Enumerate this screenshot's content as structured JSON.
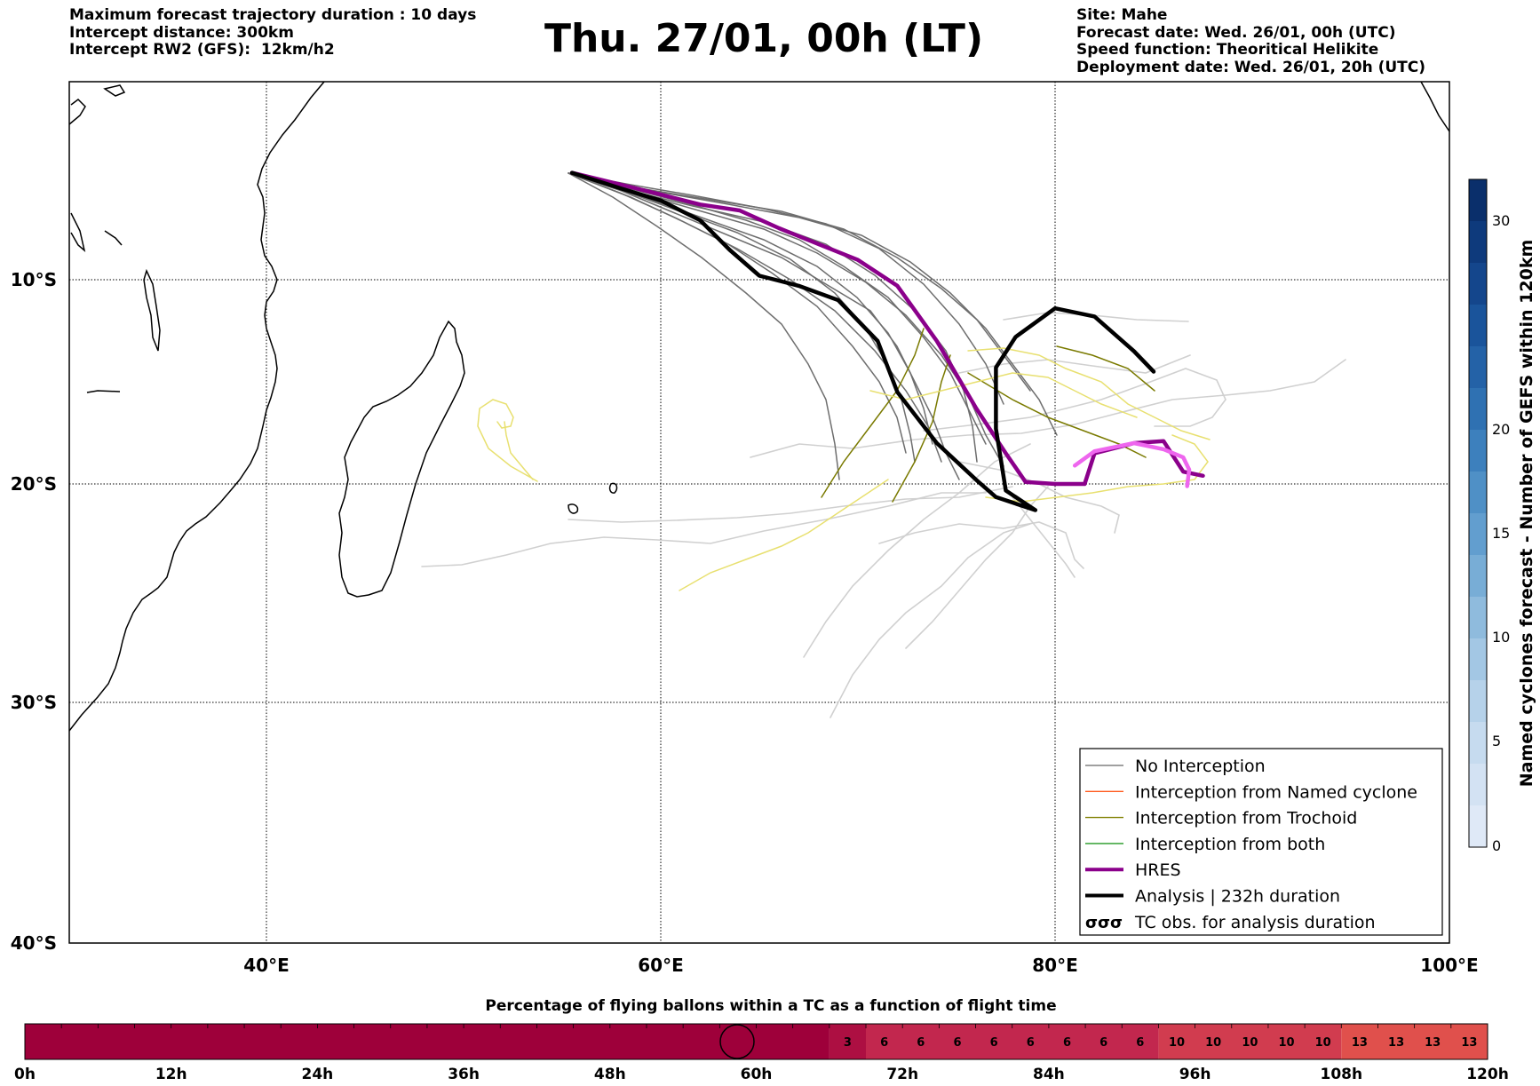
{
  "header": {
    "left": [
      "Maximum forecast trajectory duration : 10 days",
      "Intercept distance: 300km",
      "Intercept RW2 (GFS):  12km/h2"
    ],
    "title": "Thu. 27/01, 00h (LT)",
    "right": [
      "Site: Mahe",
      "Forecast date: Wed. 26/01, 00h (UTC)",
      "Speed function: Theoritical Helikite",
      "Deployment date: Wed. 26/01, 20h (UTC)"
    ]
  },
  "map": {
    "x_ticks": [
      "40°E",
      "60°E",
      "80°E",
      "100°E"
    ],
    "y_ticks": [
      "10°S",
      "20°S",
      "30°S",
      "40°S"
    ]
  },
  "legend": {
    "items": [
      {
        "label": "No Interception",
        "color": "#808080",
        "style": "thin"
      },
      {
        "label": "Interception from Named cyclone",
        "color": "#ff5a1e",
        "style": "thin"
      },
      {
        "label": "Interception from Trochoid",
        "color": "#808000",
        "style": "thin"
      },
      {
        "label": "Interception from both",
        "color": "#229922",
        "style": "thin"
      },
      {
        "label": "HRES",
        "color": "#8b008b",
        "style": "thick"
      },
      {
        "label": "Analysis | 232h duration",
        "color": "#000000",
        "style": "thick"
      },
      {
        "label": "TC obs. for analysis duration",
        "color": "#000000",
        "style": "symbol"
      }
    ]
  },
  "colorbar": {
    "label": "Named cyclones forecast - Number of GEFS within 120km",
    "ticks": [
      "30",
      "20",
      "15",
      "10",
      "5",
      "0"
    ]
  },
  "time_bar": {
    "title": "Percentage of flying ballons within a TC as a function of flight time",
    "hour_labels": [
      "0h",
      "12h",
      "24h",
      "36h",
      "48h",
      "60h",
      "72h",
      "84h",
      "96h",
      "108h",
      "120h"
    ]
  },
  "chart_data": {
    "type": "line",
    "title": "Thu. 27/01, 00h (LT)",
    "x_range_deg_E": [
      30,
      100
    ],
    "y_range_deg_S": [
      0,
      40
    ],
    "grid": true,
    "legend_placement": "bottom-right",
    "series": [
      {
        "name": "HRES",
        "color": "#8b008b",
        "points": [
          [
            55.5,
            -4.6
          ],
          [
            58,
            -5.2
          ],
          [
            60,
            -5.7
          ],
          [
            62,
            -6.2
          ],
          [
            64,
            -6.5
          ],
          [
            66,
            -7.4
          ],
          [
            68,
            -8.2
          ],
          [
            70,
            -9.0
          ],
          [
            72,
            -10.3
          ],
          [
            74,
            -13.0
          ],
          [
            76,
            -16.3
          ],
          [
            77.5,
            -18.5
          ],
          [
            78.5,
            -19.9
          ],
          [
            80,
            -20.0
          ],
          [
            81.5,
            -20.0
          ],
          [
            82,
            -18.5
          ],
          [
            84,
            -18.0
          ],
          [
            85.5,
            -17.9
          ],
          [
            86.5,
            -19.4
          ],
          [
            87.5,
            -19.6
          ]
        ]
      },
      {
        "name": "Analysis | 232h duration",
        "color": "#000000",
        "points": [
          [
            55.5,
            -4.6
          ],
          [
            58,
            -5.4
          ],
          [
            60,
            -6.0
          ],
          [
            62,
            -7.0
          ],
          [
            63.5,
            -8.5
          ],
          [
            65,
            -9.8
          ],
          [
            67,
            -10.3
          ],
          [
            69,
            -11.0
          ],
          [
            71,
            -13.0
          ],
          [
            72,
            -15.5
          ],
          [
            74,
            -18.0
          ],
          [
            76,
            -19.8
          ],
          [
            77,
            -20.6
          ],
          [
            79,
            -21.2
          ],
          [
            77.5,
            -20.3
          ],
          [
            77,
            -17.3
          ],
          [
            77,
            -14.3
          ],
          [
            78,
            -12.8
          ],
          [
            80,
            -11.4
          ],
          [
            82,
            -11.8
          ],
          [
            84,
            -13.5
          ],
          [
            85,
            -14.5
          ]
        ]
      },
      {
        "name": "Named cyclones (pink)",
        "color": "#ee66ee",
        "points": [
          [
            81,
            -19.1
          ],
          [
            82,
            -18.4
          ],
          [
            83,
            -18.2
          ],
          [
            84,
            -18.0
          ],
          [
            85.5,
            -18.3
          ],
          [
            86.5,
            -18.7
          ],
          [
            86.8,
            -19.3
          ],
          [
            86.7,
            -20.1
          ]
        ]
      }
    ],
    "time_bar_values": [
      {
        "from_h": 0,
        "to_h": 66,
        "value": 0,
        "color": "#9e003a"
      },
      {
        "from_h": 66,
        "to_h": 69,
        "value": 3,
        "color": "#ad0f42"
      },
      {
        "from_h": 69,
        "to_h": 93,
        "value": 6,
        "color": "#c2274e"
      },
      {
        "from_h": 93,
        "to_h": 108,
        "value": 10,
        "color": "#d13c4f"
      },
      {
        "from_h": 108,
        "to_h": 120,
        "value": 13,
        "color": "#e0504c"
      }
    ],
    "colorbar_range": [
      0,
      32
    ]
  }
}
